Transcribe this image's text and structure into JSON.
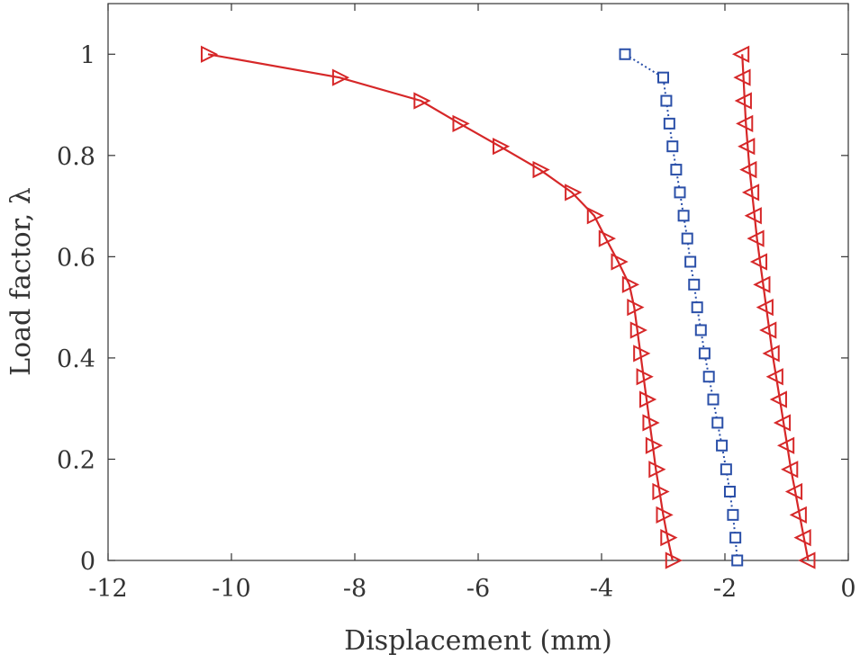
{
  "chart_data": {
    "type": "line",
    "title": "",
    "xlabel": "Displacement (mm)",
    "ylabel": "Load factor, λ",
    "xlim": [
      -12,
      0
    ],
    "ylim": [
      0,
      1.1
    ],
    "xticks": [
      "-12",
      "-10",
      "-8",
      "-6",
      "-4",
      "-2",
      "0"
    ],
    "yticks": [
      "0",
      "0.2",
      "0.4",
      "0.6",
      "0.8",
      "1"
    ],
    "grid": false,
    "legend": "none",
    "series": [
      {
        "color": "#d62728",
        "line_style": "solid",
        "marker": "triangle-right",
        "points": [
          {
            "x": -2.85,
            "y": 0.0
          },
          {
            "x": -2.93,
            "y": 0.045
          },
          {
            "x": -3.0,
            "y": 0.09
          },
          {
            "x": -3.06,
            "y": 0.136
          },
          {
            "x": -3.12,
            "y": 0.18
          },
          {
            "x": -3.17,
            "y": 0.227
          },
          {
            "x": -3.22,
            "y": 0.272
          },
          {
            "x": -3.27,
            "y": 0.318
          },
          {
            "x": -3.32,
            "y": 0.363
          },
          {
            "x": -3.37,
            "y": 0.409
          },
          {
            "x": -3.42,
            "y": 0.455
          },
          {
            "x": -3.47,
            "y": 0.5
          },
          {
            "x": -3.55,
            "y": 0.545
          },
          {
            "x": -3.73,
            "y": 0.59
          },
          {
            "x": -3.93,
            "y": 0.636
          },
          {
            "x": -4.12,
            "y": 0.681
          },
          {
            "x": -4.48,
            "y": 0.727
          },
          {
            "x": -5.0,
            "y": 0.772
          },
          {
            "x": -5.65,
            "y": 0.818
          },
          {
            "x": -6.3,
            "y": 0.863
          },
          {
            "x": -6.93,
            "y": 0.908
          },
          {
            "x": -8.25,
            "y": 0.954
          },
          {
            "x": -10.38,
            "y": 1.0
          }
        ]
      },
      {
        "color": "#2a4fa8",
        "line_style": "dotted",
        "marker": "square",
        "points": [
          {
            "x": -1.8,
            "y": 0.0
          },
          {
            "x": -1.83,
            "y": 0.045
          },
          {
            "x": -1.87,
            "y": 0.09
          },
          {
            "x": -1.92,
            "y": 0.136
          },
          {
            "x": -1.98,
            "y": 0.18
          },
          {
            "x": -2.05,
            "y": 0.227
          },
          {
            "x": -2.12,
            "y": 0.272
          },
          {
            "x": -2.19,
            "y": 0.318
          },
          {
            "x": -2.26,
            "y": 0.363
          },
          {
            "x": -2.33,
            "y": 0.409
          },
          {
            "x": -2.39,
            "y": 0.455
          },
          {
            "x": -2.45,
            "y": 0.5
          },
          {
            "x": -2.5,
            "y": 0.545
          },
          {
            "x": -2.56,
            "y": 0.59
          },
          {
            "x": -2.61,
            "y": 0.636
          },
          {
            "x": -2.67,
            "y": 0.681
          },
          {
            "x": -2.73,
            "y": 0.727
          },
          {
            "x": -2.79,
            "y": 0.772
          },
          {
            "x": -2.85,
            "y": 0.818
          },
          {
            "x": -2.9,
            "y": 0.863
          },
          {
            "x": -2.95,
            "y": 0.908
          },
          {
            "x": -3.0,
            "y": 0.954
          },
          {
            "x": -3.62,
            "y": 1.0
          }
        ]
      },
      {
        "color": "#d62728",
        "line_style": "solid",
        "marker": "triangle-left",
        "points": [
          {
            "x": -0.65,
            "y": 0.0
          },
          {
            "x": -0.72,
            "y": 0.045
          },
          {
            "x": -0.79,
            "y": 0.09
          },
          {
            "x": -0.86,
            "y": 0.136
          },
          {
            "x": -0.93,
            "y": 0.18
          },
          {
            "x": -0.99,
            "y": 0.227
          },
          {
            "x": -1.05,
            "y": 0.272
          },
          {
            "x": -1.11,
            "y": 0.318
          },
          {
            "x": -1.17,
            "y": 0.363
          },
          {
            "x": -1.23,
            "y": 0.409
          },
          {
            "x": -1.28,
            "y": 0.455
          },
          {
            "x": -1.33,
            "y": 0.5
          },
          {
            "x": -1.38,
            "y": 0.545
          },
          {
            "x": -1.43,
            "y": 0.59
          },
          {
            "x": -1.48,
            "y": 0.636
          },
          {
            "x": -1.52,
            "y": 0.681
          },
          {
            "x": -1.56,
            "y": 0.727
          },
          {
            "x": -1.6,
            "y": 0.772
          },
          {
            "x": -1.63,
            "y": 0.818
          },
          {
            "x": -1.66,
            "y": 0.863
          },
          {
            "x": -1.68,
            "y": 0.908
          },
          {
            "x": -1.7,
            "y": 0.954
          },
          {
            "x": -1.72,
            "y": 1.0
          }
        ]
      }
    ]
  }
}
